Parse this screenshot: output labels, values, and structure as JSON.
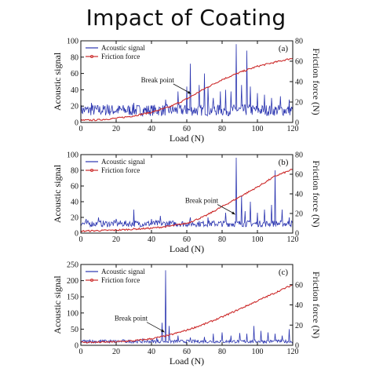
{
  "page": {
    "title": "Impact of Coating"
  },
  "colors": {
    "acoustic": "#2b35b0",
    "friction": "#cc2a2a",
    "axis": "#111111"
  },
  "chart_data": [
    {
      "panel_label": "(a)",
      "type": "line",
      "xlabel": "Load (N)",
      "ylabel_left": "Acoustic signal",
      "ylabel_right": "Friction force (N)",
      "xlim": [
        0,
        120
      ],
      "xticks": [
        0,
        20,
        40,
        60,
        80,
        100,
        120
      ],
      "ylim_left": [
        0,
        100
      ],
      "yticks_left": [
        0,
        20,
        40,
        60,
        80,
        100
      ],
      "ylim_right": [
        0,
        80
      ],
      "yticks_right": [
        0,
        20,
        40,
        60,
        80
      ],
      "legend": [
        "Acoustic signal",
        "Friction force"
      ],
      "legend_position": "top-left",
      "annotation": {
        "text": "Break point",
        "x": 63,
        "y_right": 27
      },
      "series": [
        {
          "name": "Acoustic signal",
          "axis": "left",
          "baseline": 15,
          "noise": 7,
          "spikes": [
            [
              6,
              24
            ],
            [
              15,
              22
            ],
            [
              30,
              24
            ],
            [
              48,
              28
            ],
            [
              55,
              38
            ],
            [
              60,
              44
            ],
            [
              62,
              72
            ],
            [
              67,
              46
            ],
            [
              70,
              60
            ],
            [
              72,
              44
            ],
            [
              75,
              30
            ],
            [
              79,
              38
            ],
            [
              82,
              40
            ],
            [
              85,
              38
            ],
            [
              88,
              96
            ],
            [
              91,
              46
            ],
            [
              94,
              88
            ],
            [
              96,
              44
            ],
            [
              100,
              36
            ],
            [
              104,
              34
            ],
            [
              108,
              30
            ],
            [
              113,
              32
            ],
            [
              118,
              28
            ]
          ]
        },
        {
          "name": "Friction force",
          "axis": "right",
          "x": [
            0,
            10,
            20,
            30,
            40,
            50,
            60,
            70,
            80,
            90,
            100,
            110,
            120
          ],
          "y": [
            2,
            2.5,
            4,
            6.5,
            10,
            15,
            23,
            33,
            42,
            49,
            55,
            59,
            63
          ]
        }
      ]
    },
    {
      "panel_label": "(b)",
      "type": "line",
      "xlabel": "Load (N)",
      "ylabel_left": "Acoustic signal",
      "ylabel_right": "Friction force (N)",
      "xlim": [
        0,
        120
      ],
      "xticks": [
        0,
        20,
        40,
        60,
        80,
        100,
        120
      ],
      "ylim_left": [
        0,
        100
      ],
      "yticks_left": [
        0,
        20,
        40,
        60,
        80,
        100
      ],
      "ylim_right": [
        0,
        80
      ],
      "yticks_right": [
        0,
        20,
        40,
        60,
        80
      ],
      "legend": [
        "Acoustic signal",
        "Friction force"
      ],
      "legend_position": "top-left",
      "annotation": {
        "text": "Break point",
        "x": 88,
        "y_right": 18
      },
      "series": [
        {
          "name": "Acoustic signal",
          "axis": "left",
          "baseline": 12,
          "noise": 4,
          "spikes": [
            [
              3,
              18
            ],
            [
              10,
              20
            ],
            [
              20,
              18
            ],
            [
              30,
              30
            ],
            [
              40,
              18
            ],
            [
              45,
              22
            ],
            [
              62,
              20
            ],
            [
              72,
              20
            ],
            [
              82,
              26
            ],
            [
              88,
              96
            ],
            [
              91,
              48
            ],
            [
              93,
              28
            ],
            [
              96,
              40
            ],
            [
              100,
              26
            ],
            [
              104,
              30
            ],
            [
              108,
              36
            ],
            [
              110,
              80
            ],
            [
              114,
              30
            ],
            [
              118,
              20
            ]
          ]
        },
        {
          "name": "Friction force",
          "axis": "right",
          "x": [
            0,
            10,
            20,
            30,
            40,
            50,
            60,
            70,
            80,
            90,
            100,
            110,
            120
          ],
          "y": [
            2,
            2.5,
            3,
            4,
            5,
            7,
            10,
            17,
            27,
            37,
            47,
            58,
            65
          ]
        }
      ]
    },
    {
      "panel_label": "(c)",
      "type": "line",
      "xlabel": "Load (N)",
      "ylabel_left": "Acoustic signal",
      "ylabel_right": "Friction force (N)",
      "xlim": [
        0,
        120
      ],
      "xticks": [
        0,
        20,
        40,
        60,
        80,
        100,
        120
      ],
      "ylim_left": [
        0,
        250
      ],
      "yticks_left": [
        0,
        50,
        100,
        150,
        200,
        250
      ],
      "ylim_right": [
        0,
        80
      ],
      "yticks_right": [
        0,
        20,
        40,
        60
      ],
      "legend": [
        "Acoustic signal",
        "Friction force"
      ],
      "legend_position": "top-left",
      "annotation": {
        "text": "Break point",
        "x": 48,
        "y_right": 12
      },
      "series": [
        {
          "name": "Acoustic signal",
          "axis": "left",
          "baseline": 12,
          "noise": 5,
          "spikes": [
            [
              5,
              18
            ],
            [
              14,
              16
            ],
            [
              24,
              18
            ],
            [
              35,
              20
            ],
            [
              43,
              24
            ],
            [
              46,
              70
            ],
            [
              48,
              232
            ],
            [
              50,
              60
            ],
            [
              55,
              30
            ],
            [
              62,
              24
            ],
            [
              70,
              26
            ],
            [
              75,
              36
            ],
            [
              80,
              40
            ],
            [
              85,
              30
            ],
            [
              90,
              38
            ],
            [
              94,
              36
            ],
            [
              98,
              60
            ],
            [
              102,
              45
            ],
            [
              106,
              40
            ],
            [
              110,
              36
            ],
            [
              114,
              30
            ],
            [
              118,
              50
            ]
          ]
        },
        {
          "name": "Friction force",
          "axis": "right",
          "x": [
            0,
            10,
            20,
            30,
            40,
            50,
            60,
            70,
            80,
            90,
            100,
            110,
            120
          ],
          "y": [
            3,
            3,
            3.5,
            4.5,
            6.5,
            10,
            15,
            21,
            28,
            36,
            44,
            52,
            60
          ]
        }
      ]
    }
  ]
}
